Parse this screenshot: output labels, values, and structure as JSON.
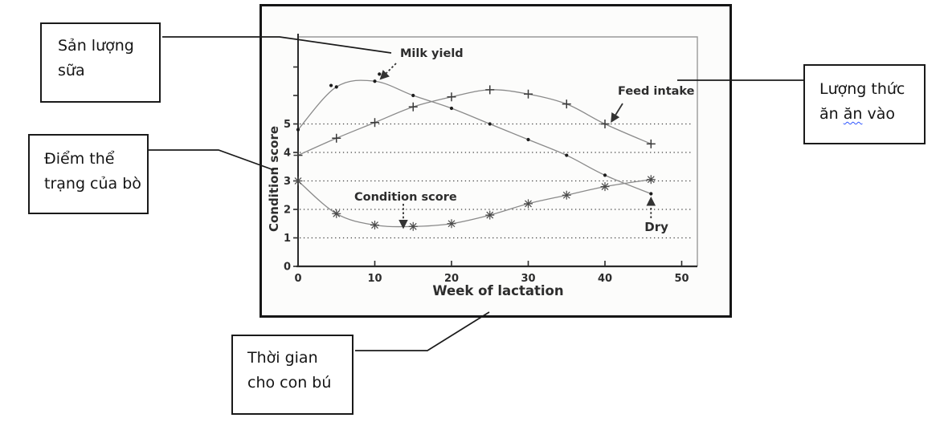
{
  "callouts": {
    "milk": {
      "line1": "Sản lượng",
      "line2": "sữa"
    },
    "condition": {
      "line1": "Điểm thể",
      "line2": "trạng của bò"
    },
    "feed": {
      "line1": "Lượng thức",
      "line2_word1": "ăn ",
      "line2_word2": "ăn",
      "line2_word3": " vào",
      "squiggle_color": "#2f55ff"
    },
    "lactation": {
      "line1": "Thời gian",
      "line2": "cho con bú"
    }
  },
  "chart_data": {
    "type": "line",
    "title": "",
    "xlabel": "Week of lactation",
    "ylabel": "Condition score",
    "xlim": [
      0,
      50
    ],
    "ylim": [
      0,
      7.3
    ],
    "x_ticks": [
      0,
      10,
      20,
      30,
      40,
      50
    ],
    "y_tick_labels": [
      0,
      1,
      2,
      3,
      4,
      5
    ],
    "y_ticks_unlabeled": [
      6,
      7
    ],
    "gridlines_y": [
      1,
      2,
      3,
      4,
      5
    ],
    "grid_style": "dotted",
    "legend_position": "inline-labels",
    "x": [
      0,
      5,
      10,
      15,
      20,
      25,
      30,
      35,
      40,
      46
    ],
    "series": [
      {
        "name": "Milk yield",
        "marker": "dot",
        "values": [
          4.8,
          6.3,
          6.5,
          6.0,
          5.55,
          5.0,
          4.45,
          3.9,
          3.2,
          2.55
        ],
        "extra_dots": [
          [
            4.3,
            6.35
          ],
          [
            10.6,
            6.75
          ]
        ]
      },
      {
        "name": "Feed intake",
        "marker": "plus",
        "values": [
          3.9,
          4.5,
          5.05,
          5.6,
          5.95,
          6.2,
          6.05,
          5.7,
          5.0,
          4.3
        ]
      },
      {
        "name": "Condition score",
        "marker": "asterisk",
        "values": [
          3.0,
          1.85,
          1.45,
          1.4,
          1.5,
          1.8,
          2.2,
          2.5,
          2.8,
          3.05
        ]
      }
    ],
    "annotations": [
      {
        "label": "Dry",
        "x": 46,
        "y": 2.55
      }
    ]
  },
  "colors": {
    "curve": "#8a8a8a",
    "axis": "#2b2b2b",
    "text": "#2d2d2d",
    "frame_light": "#9a9a9a",
    "connector": "#1b1b1b"
  }
}
